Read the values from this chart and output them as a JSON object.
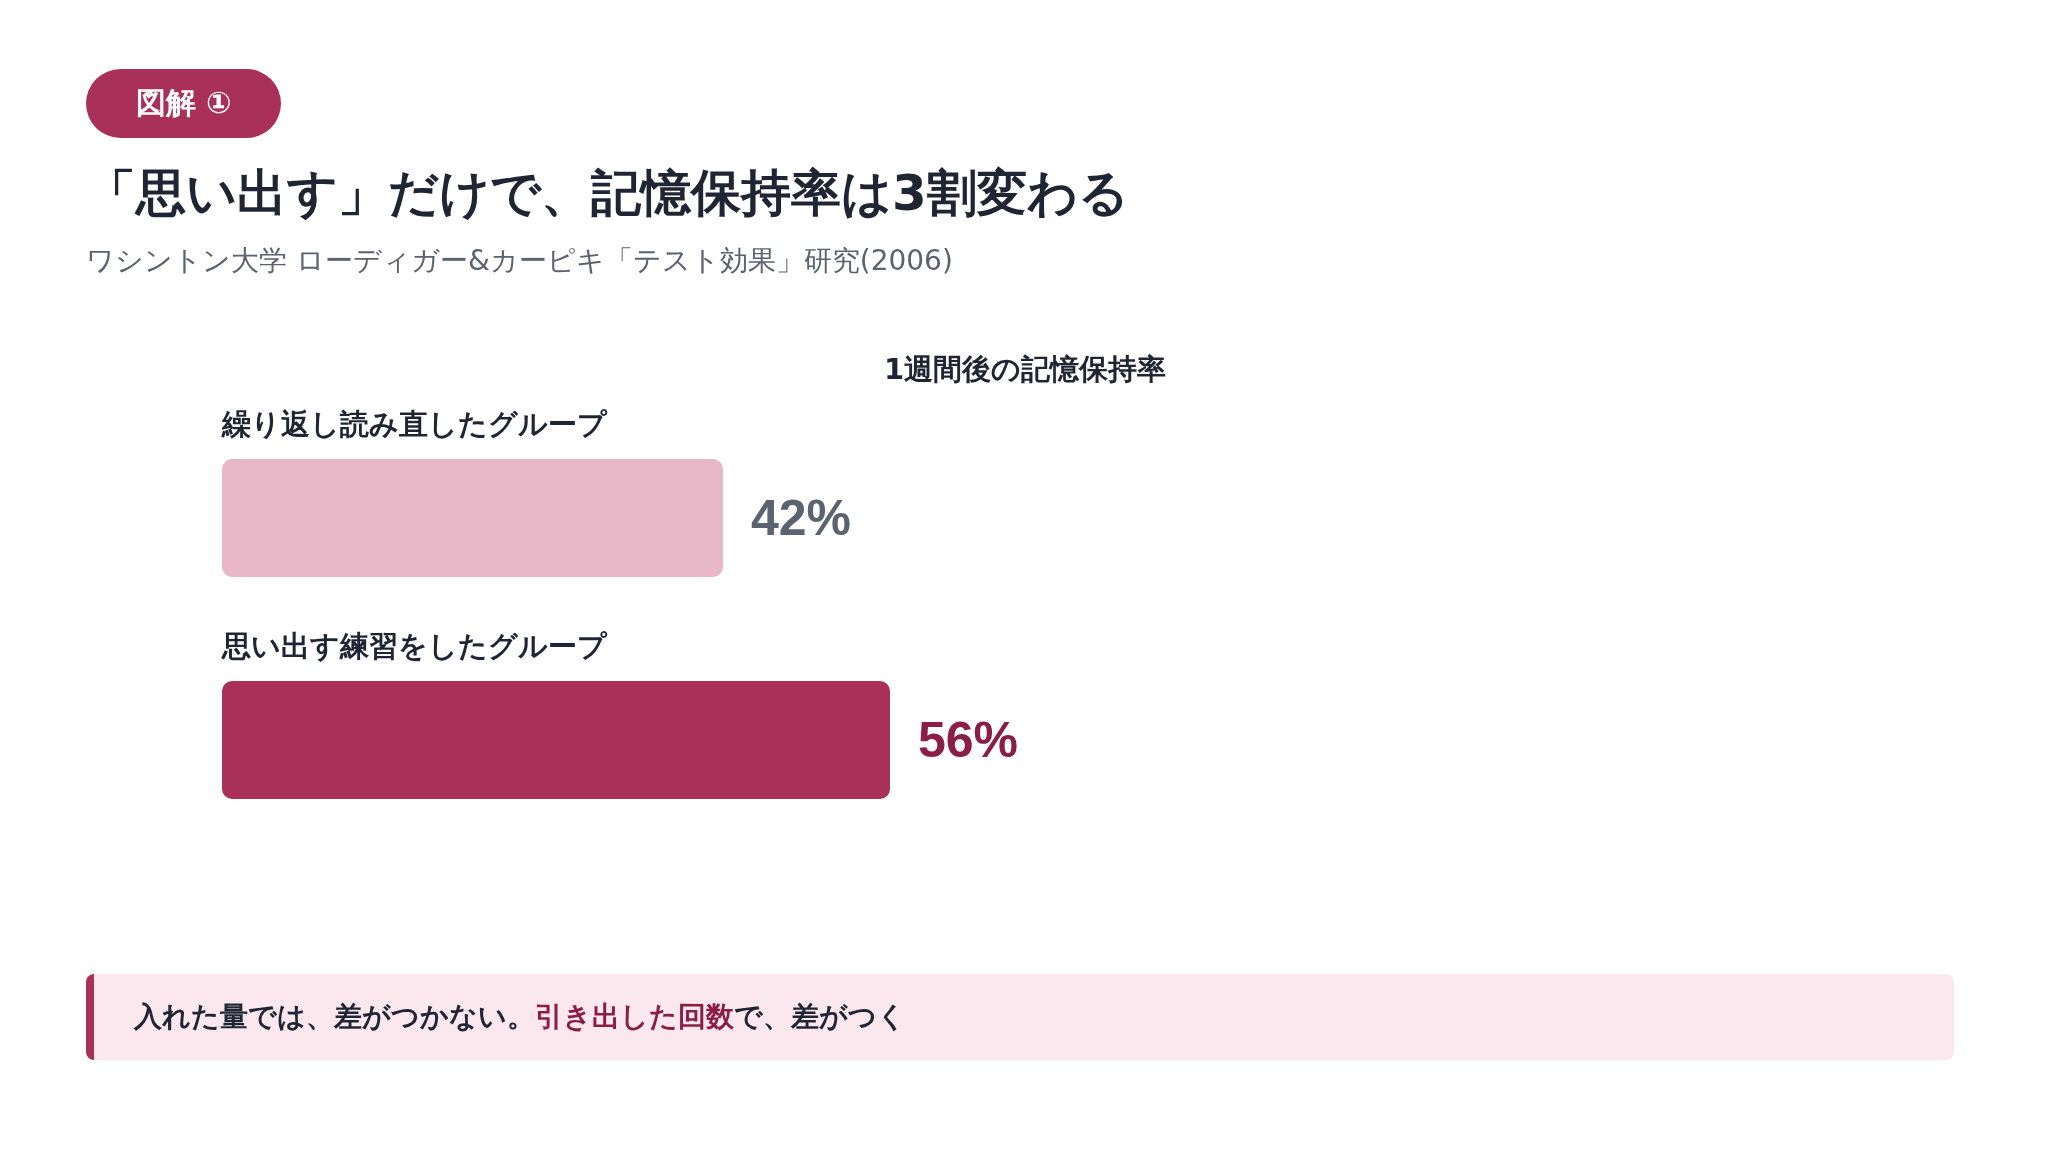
{
  "chart_data": {
    "type": "bar",
    "orientation": "horizontal",
    "title": "「思い出す」だけで、記憶保持率は3割変わる",
    "subtitle": "ワシントン大学 ローディガー&カーピキ「テスト効果」研究(2006)",
    "annotations": [
      "図解 ①",
      "1週間後の記憶保持率",
      "入れた量では、差がつかない。",
      "引き出した回数",
      "で、差がつく"
    ],
    "categories": [
      "繰り返し読み直したグループ",
      "思い出す練習をしたグループ"
    ],
    "values": [
      42,
      56
    ],
    "colors": [
      "#e8b8c9",
      "#a83059"
    ],
    "value_labels": [
      "42%",
      "56%"
    ]
  }
}
